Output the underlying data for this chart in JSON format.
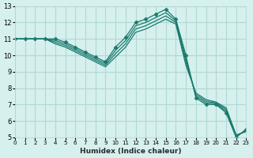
{
  "xlabel": "Humidex (Indice chaleur)",
  "ylabel": "",
  "background_color": "#d6f0ee",
  "grid_color": "#b0d8d4",
  "line_color": "#1a7a6e",
  "xlim": [
    0,
    23
  ],
  "ylim": [
    5,
    13
  ],
  "xticks": [
    0,
    1,
    2,
    3,
    4,
    5,
    6,
    7,
    8,
    9,
    10,
    11,
    12,
    13,
    14,
    15,
    16,
    17,
    18,
    19,
    20,
    21,
    22,
    23
  ],
  "yticks": [
    5,
    6,
    7,
    8,
    9,
    10,
    11,
    12,
    13
  ],
  "series": [
    {
      "x": [
        0,
        1,
        2,
        3,
        4,
        5,
        6,
        7,
        8,
        9,
        10,
        11,
        12,
        13,
        14,
        15,
        16,
        17,
        18,
        19,
        20,
        21,
        22,
        23
      ],
      "y": [
        11.0,
        11.0,
        11.0,
        11.0,
        11.0,
        10.8,
        10.5,
        10.2,
        9.9,
        9.6,
        10.5,
        11.1,
        12.0,
        12.2,
        12.5,
        12.8,
        12.2,
        10.0,
        7.4,
        7.0,
        7.0,
        6.5,
        5.0,
        5.5
      ],
      "marker": "D",
      "markersize": 2.5
    },
    {
      "x": [
        0,
        1,
        2,
        3,
        4,
        5,
        6,
        7,
        8,
        9,
        10,
        11,
        12,
        13,
        14,
        15,
        16,
        17,
        18,
        19,
        20,
        21,
        22,
        23
      ],
      "y": [
        11.0,
        11.0,
        11.0,
        11.0,
        10.9,
        10.7,
        10.4,
        10.1,
        9.8,
        9.5,
        10.3,
        10.9,
        11.8,
        12.0,
        12.3,
        12.6,
        12.1,
        9.8,
        7.5,
        7.1,
        7.05,
        6.6,
        5.05,
        5.45
      ],
      "marker": null,
      "markersize": 0
    },
    {
      "x": [
        0,
        1,
        2,
        3,
        4,
        5,
        6,
        7,
        8,
        9,
        10,
        11,
        12,
        13,
        14,
        15,
        16,
        17,
        18,
        19,
        20,
        21,
        22,
        23
      ],
      "y": [
        11.0,
        11.0,
        11.0,
        11.0,
        10.8,
        10.6,
        10.3,
        10.0,
        9.7,
        9.4,
        10.1,
        10.7,
        11.6,
        11.8,
        12.1,
        12.4,
        12.0,
        9.6,
        7.6,
        7.2,
        7.1,
        6.7,
        5.1,
        5.4
      ],
      "marker": null,
      "markersize": 0
    },
    {
      "x": [
        0,
        1,
        2,
        3,
        4,
        5,
        6,
        7,
        8,
        9,
        10,
        11,
        12,
        13,
        14,
        15,
        16,
        17,
        18,
        19,
        20,
        21,
        22,
        23
      ],
      "y": [
        11.0,
        11.0,
        11.0,
        11.0,
        10.7,
        10.5,
        10.2,
        9.9,
        9.6,
        9.3,
        9.9,
        10.5,
        11.4,
        11.6,
        11.9,
        12.2,
        11.9,
        9.4,
        7.7,
        7.3,
        7.15,
        6.8,
        5.15,
        5.35
      ],
      "marker": null,
      "markersize": 0
    }
  ]
}
